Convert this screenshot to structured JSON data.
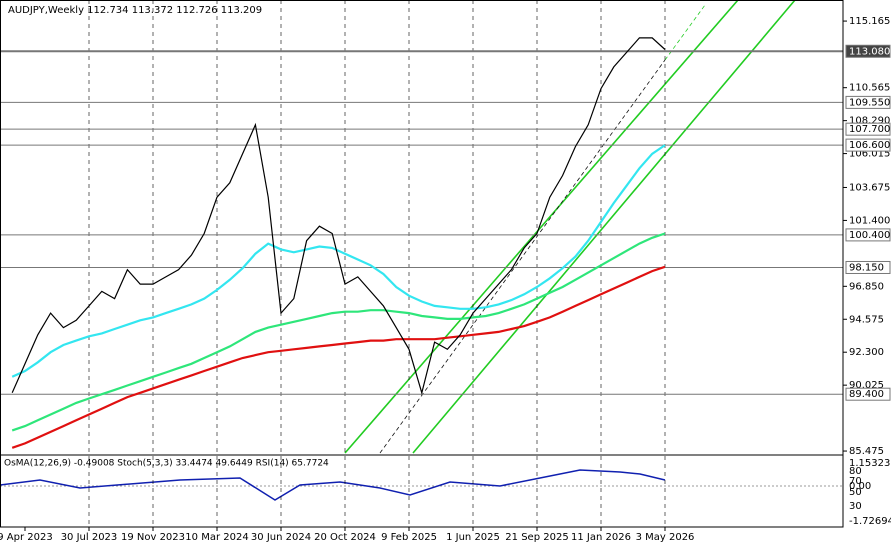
{
  "chart_data": {
    "type": "line",
    "title": "AUDJPY,Weekly  112.734 113.372 112.726 113.209",
    "categories": [
      null,
      "9 Apr 2023",
      null,
      null,
      null,
      null,
      "30 Jul 2023",
      null,
      null,
      null,
      null,
      "19 Nov 2023",
      null,
      null,
      null,
      null,
      "10 Mar 2024",
      null,
      null,
      null,
      null,
      "30 Jun 2024",
      null,
      null,
      null,
      null,
      "20 Oct 2024",
      null,
      null,
      null,
      null,
      "9 Feb 2025",
      null,
      null,
      null,
      null,
      "1 Jun 2025",
      null,
      null,
      null,
      null,
      "21 Sep 2025",
      null,
      null,
      null,
      null,
      "11 Jan 2026",
      null,
      null,
      null,
      null,
      "3 May 2026"
    ],
    "series": [
      {
        "color": "#000000",
        "values": [
          89.5,
          91.5,
          93.5,
          95.0,
          94.0,
          94.5,
          95.5,
          96.5,
          96.0,
          98.0,
          97.0,
          97.0,
          97.5,
          98.0,
          99.0,
          100.5,
          103.0,
          104.0,
          106.0,
          108.0,
          103.0,
          95.0,
          96.0,
          100.0,
          101.0,
          100.5,
          97.0,
          97.5,
          96.5,
          95.5,
          94.0,
          92.5,
          89.5,
          93.0,
          92.5,
          93.5,
          95.0,
          96.0,
          97.0,
          98.0,
          99.5,
          100.5,
          103.0,
          104.5,
          106.5,
          108.0,
          110.5,
          112.0,
          113.0,
          114.0,
          114.0,
          113.2
        ]
      },
      {
        "color": "#33e6f0",
        "values": [
          90.6,
          91.0,
          91.6,
          92.3,
          92.8,
          93.1,
          93.4,
          93.6,
          93.9,
          94.2,
          94.5,
          94.7,
          95.0,
          95.3,
          95.6,
          96.0,
          96.6,
          97.3,
          98.1,
          99.1,
          99.8,
          99.4,
          99.2,
          99.4,
          99.6,
          99.5,
          99.1,
          98.7,
          98.3,
          97.7,
          96.8,
          96.2,
          95.8,
          95.5,
          95.4,
          95.3,
          95.3,
          95.4,
          95.6,
          95.9,
          96.3,
          96.8,
          97.4,
          98.1,
          98.9,
          100.0,
          101.3,
          102.6,
          103.8,
          105.0,
          106.0,
          106.6
        ]
      },
      {
        "color": "#2ee67a",
        "values": [
          86.9,
          87.2,
          87.6,
          88.0,
          88.4,
          88.8,
          89.1,
          89.4,
          89.7,
          90.0,
          90.3,
          90.6,
          90.9,
          91.2,
          91.5,
          91.9,
          92.3,
          92.7,
          93.2,
          93.7,
          94.0,
          94.2,
          94.4,
          94.6,
          94.8,
          95.0,
          95.1,
          95.1,
          95.2,
          95.2,
          95.1,
          95.0,
          94.8,
          94.7,
          94.6,
          94.6,
          94.7,
          94.8,
          95.0,
          95.3,
          95.6,
          96.0,
          96.4,
          96.8,
          97.3,
          97.8,
          98.3,
          98.8,
          99.3,
          99.8,
          100.2,
          100.5
        ]
      },
      {
        "color": "#e01010",
        "values": [
          85.7,
          86.0,
          86.4,
          86.8,
          87.2,
          87.6,
          88.0,
          88.4,
          88.8,
          89.2,
          89.5,
          89.8,
          90.1,
          90.4,
          90.7,
          91.0,
          91.3,
          91.6,
          91.9,
          92.1,
          92.3,
          92.4,
          92.5,
          92.6,
          92.7,
          92.8,
          92.9,
          93.0,
          93.1,
          93.1,
          93.2,
          93.2,
          93.2,
          93.2,
          93.3,
          93.4,
          93.5,
          93.6,
          93.7,
          93.9,
          94.1,
          94.4,
          94.7,
          95.1,
          95.5,
          95.9,
          96.3,
          96.7,
          97.1,
          97.5,
          97.9,
          98.2
        ]
      }
    ],
    "ylim": [
      85.34,
      116.62
    ],
    "yticks": [
      115.165,
      110.565,
      {
        "value": 108.29,
        "label": "108.290"
      },
      106.015,
      103.675,
      {
        "value": 101.4,
        "label": "101.400"
      },
      {
        "value": 96.85,
        "label": "96.850"
      },
      94.575,
      {
        "value": 92.3,
        "label": "92.300"
      },
      90.025,
      85.475
    ],
    "current_price": {
      "value": 113.08,
      "label": "113.080"
    },
    "levels": [
      {
        "value": 109.55,
        "label": "109.550"
      },
      {
        "value": 107.7,
        "label": "107.700"
      },
      {
        "value": 106.6,
        "label": "106.600"
      },
      {
        "value": 100.4,
        "label": "100.400"
      },
      {
        "value": 98.15,
        "label": "98.150"
      },
      {
        "value": 89.4,
        "label": "89.400"
      }
    ],
    "oscillator": {
      "title": "OsMA(12,26,9) -0.49008  Stoch(5,3,3) 33.4474 49.6449  RSI(14) 65.7724",
      "labels": [
        "1.15323",
        "80",
        "70",
        "0.00",
        "50",
        "30",
        "-1.72694"
      ]
    }
  }
}
